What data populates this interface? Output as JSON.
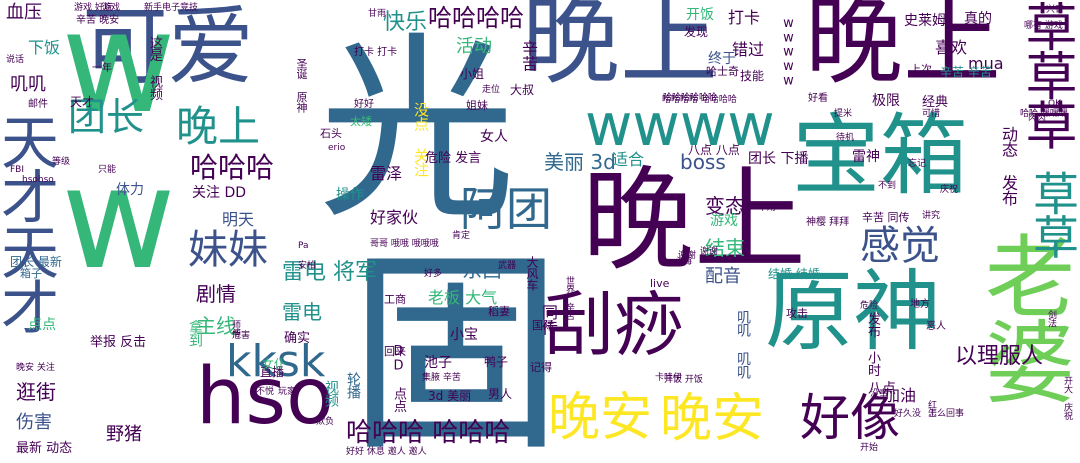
{
  "palette": {
    "deep_purple": "#440154",
    "indigo": "#3b528b",
    "steel_blue": "#31688e",
    "teal": "#21918c",
    "green_teal": "#35b779",
    "green": "#6ece58",
    "lime": "#b5de2b",
    "yellow": "#fde725"
  },
  "words": [
    {
      "text": "晚上"
    },
    {
      "text": "晚上"
    },
    {
      "text": "晚上"
    },
    {
      "text": "光"
    },
    {
      "text": "固"
    },
    {
      "text": "可爱"
    },
    {
      "text": "宝箱"
    },
    {
      "text": "原神"
    },
    {
      "text": "老婆"
    },
    {
      "text": "刮痧"
    },
    {
      "text": "天才天才"
    },
    {
      "text": "hso"
    },
    {
      "text": "wwww"
    },
    {
      "text": "ww"
    },
    {
      "text": "草草草"
    },
    {
      "text": "草草"
    },
    {
      "text": "晚安"
    },
    {
      "text": "晚安"
    },
    {
      "text": "好像"
    },
    {
      "text": "kksk"
    },
    {
      "text": "阿团"
    },
    {
      "text": "感觉"
    },
    {
      "text": "妹妹"
    },
    {
      "text": "团长"
    },
    {
      "text": "晚上"
    },
    {
      "text": "哈哈哈"
    },
    {
      "text": "哈哈哈哈"
    },
    {
      "text": "哈哈哈 哈哈哈"
    },
    {
      "text": "雷电 将军"
    },
    {
      "text": "以理服人"
    },
    {
      "text": "快乐"
    },
    {
      "text": "活动"
    },
    {
      "text": "美丽 3d"
    },
    {
      "text": "boss"
    },
    {
      "text": "变态"
    },
    {
      "text": "东西"
    },
    {
      "text": "剧情"
    },
    {
      "text": "主线"
    },
    {
      "text": "雷电"
    },
    {
      "text": "逛街"
    },
    {
      "text": "伤害"
    },
    {
      "text": "野猪"
    },
    {
      "text": "结束"
    },
    {
      "text": "配音"
    },
    {
      "text": "老板 大气"
    },
    {
      "text": "同传"
    },
    {
      "text": "雷泽"
    },
    {
      "text": "好家伙"
    },
    {
      "text": "明天"
    },
    {
      "text": "加油"
    },
    {
      "text": "辛苦"
    },
    {
      "text": "打卡"
    },
    {
      "text": "开饭"
    },
    {
      "text": "错过"
    },
    {
      "text": "终于"
    },
    {
      "text": "喜欢"
    },
    {
      "text": "mua"
    },
    {
      "text": "真的"
    },
    {
      "text": "史莱姆"
    },
    {
      "text": "动态 发布"
    },
    {
      "text": "极限"
    },
    {
      "text": "经典"
    },
    {
      "text": "辛苦 辛苦"
    },
    {
      "text": "团长 下播"
    },
    {
      "text": "雷神"
    },
    {
      "text": "体力"
    },
    {
      "text": "操作"
    },
    {
      "text": "关注 DD"
    },
    {
      "text": "确实"
    },
    {
      "text": "举报 反击"
    },
    {
      "text": "最新 动态"
    },
    {
      "text": "血压"
    },
    {
      "text": "下饭"
    },
    {
      "text": "叽叽"
    },
    {
      "text": "没点 关注"
    },
    {
      "text": "游戏"
    },
    {
      "text": "女人"
    },
    {
      "text": "危险 发言"
    },
    {
      "text": "八点 八点"
    },
    {
      "text": "结婚 结婚"
    },
    {
      "text": "适合"
    },
    {
      "text": "大风车"
    },
    {
      "text": "池子"
    },
    {
      "text": "小宝"
    },
    {
      "text": "鸭子"
    },
    {
      "text": "男人"
    },
    {
      "text": "3d 美丽"
    },
    {
      "text": "DD 点点"
    },
    {
      "text": "叽叽 叽叽"
    },
    {
      "text": "发布 小时"
    },
    {
      "text": "八点"
    },
    {
      "text": "辛苦 同传"
    },
    {
      "text": "直播"
    },
    {
      "text": "女仆"
    },
    {
      "text": "拿到"
    },
    {
      "text": "视频"
    },
    {
      "text": "轮播"
    },
    {
      "text": "点点"
    },
    {
      "text": "团长 最新"
    },
    {
      "text": "箱子"
    },
    {
      "text": "太矮"
    },
    {
      "text": "石头"
    },
    {
      "text": "姐妹"
    },
    {
      "text": "小姐"
    },
    {
      "text": "大叔"
    },
    {
      "text": "走位"
    },
    {
      "text": "发现"
    },
    {
      "text": "技能"
    },
    {
      "text": "哈士奇"
    },
    {
      "text": "上次"
    },
    {
      "text": "一年"
    },
    {
      "text": "天才"
    },
    {
      "text": "这是 视频"
    },
    {
      "text": "圣诞 原神"
    },
    {
      "text": "打卡 打卡"
    },
    {
      "text": "游戏 好玩"
    },
    {
      "text": "新手电子竞技"
    },
    {
      "text": "辛苦 晚安"
    },
    {
      "text": "哈哈哈哈 哈哈哈哈"
    },
    {
      "text": "回来"
    },
    {
      "text": "工商"
    },
    {
      "text": "稻妻"
    },
    {
      "text": "国际"
    },
    {
      "text": "记得"
    },
    {
      "text": "攻击"
    },
    {
      "text": "地方"
    },
    {
      "text": "恶人"
    },
    {
      "text": "剑法"
    },
    {
      "text": "邮件"
    },
    {
      "text": "好好"
    },
    {
      "text": "好看"
    },
    {
      "text": "可惜"
    },
    {
      "text": "待机"
    },
    {
      "text": "庆祝"
    },
    {
      "text": "讲究"
    },
    {
      "text": "不到"
    },
    {
      "text": "忘记"
    },
    {
      "text": "谢谢"
    },
    {
      "text": "好多"
    },
    {
      "text": "live"
    },
    {
      "text": "心海"
    },
    {
      "text": "卡哇伊"
    },
    {
      "text": "开始"
    },
    {
      "text": "危险"
    },
    {
      "text": "神樱 拜拜"
    },
    {
      "text": "好久没"
    },
    {
      "text": "怎么回事"
    },
    {
      "text": "开大 庆祝"
    },
    {
      "text": "没事"
    },
    {
      "text": "红士"
    },
    {
      "text": "不悦"
    },
    {
      "text": "玩家"
    },
    {
      "text": "师傅"
    },
    {
      "text": "欺负"
    },
    {
      "text": "好好 休息 邀人 邀人"
    },
    {
      "text": "晚安 关注"
    },
    {
      "text": "肯定"
    },
    {
      "text": "哥哥 哦哦 哦哦哦"
    },
    {
      "text": "只能"
    },
    {
      "text": "等级"
    },
    {
      "text": "hsohso"
    },
    {
      "text": "FBI"
    },
    {
      "text": "说话"
    },
    {
      "text": "甘雨"
    },
    {
      "text": "哈哈 嘿嘿嘿"
    },
    {
      "text": "提米"
    },
    {
      "text": "肉肉"
    },
    {
      "text": "OK"
    },
    {
      "text": "兴奋"
    },
    {
      "text": "哪有 游戏"
    },
    {
      "text": "游戏"
    },
    {
      "text": "不用"
    },
    {
      "text": "谢谢"
    },
    {
      "text": "武器"
    },
    {
      "text": "集腋 辛苦"
    },
    {
      "text": "世界 辛苦"
    },
    {
      "text": "开饭 开饭"
    },
    {
      "text": "安柏"
    },
    {
      "text": "Pa"
    },
    {
      "text": "erio"
    },
    {
      "text": "危害"
    },
    {
      "text": "wwwww"
    },
    {
      "text": "哈哈哈哈哈哈"
    }
  ]
}
